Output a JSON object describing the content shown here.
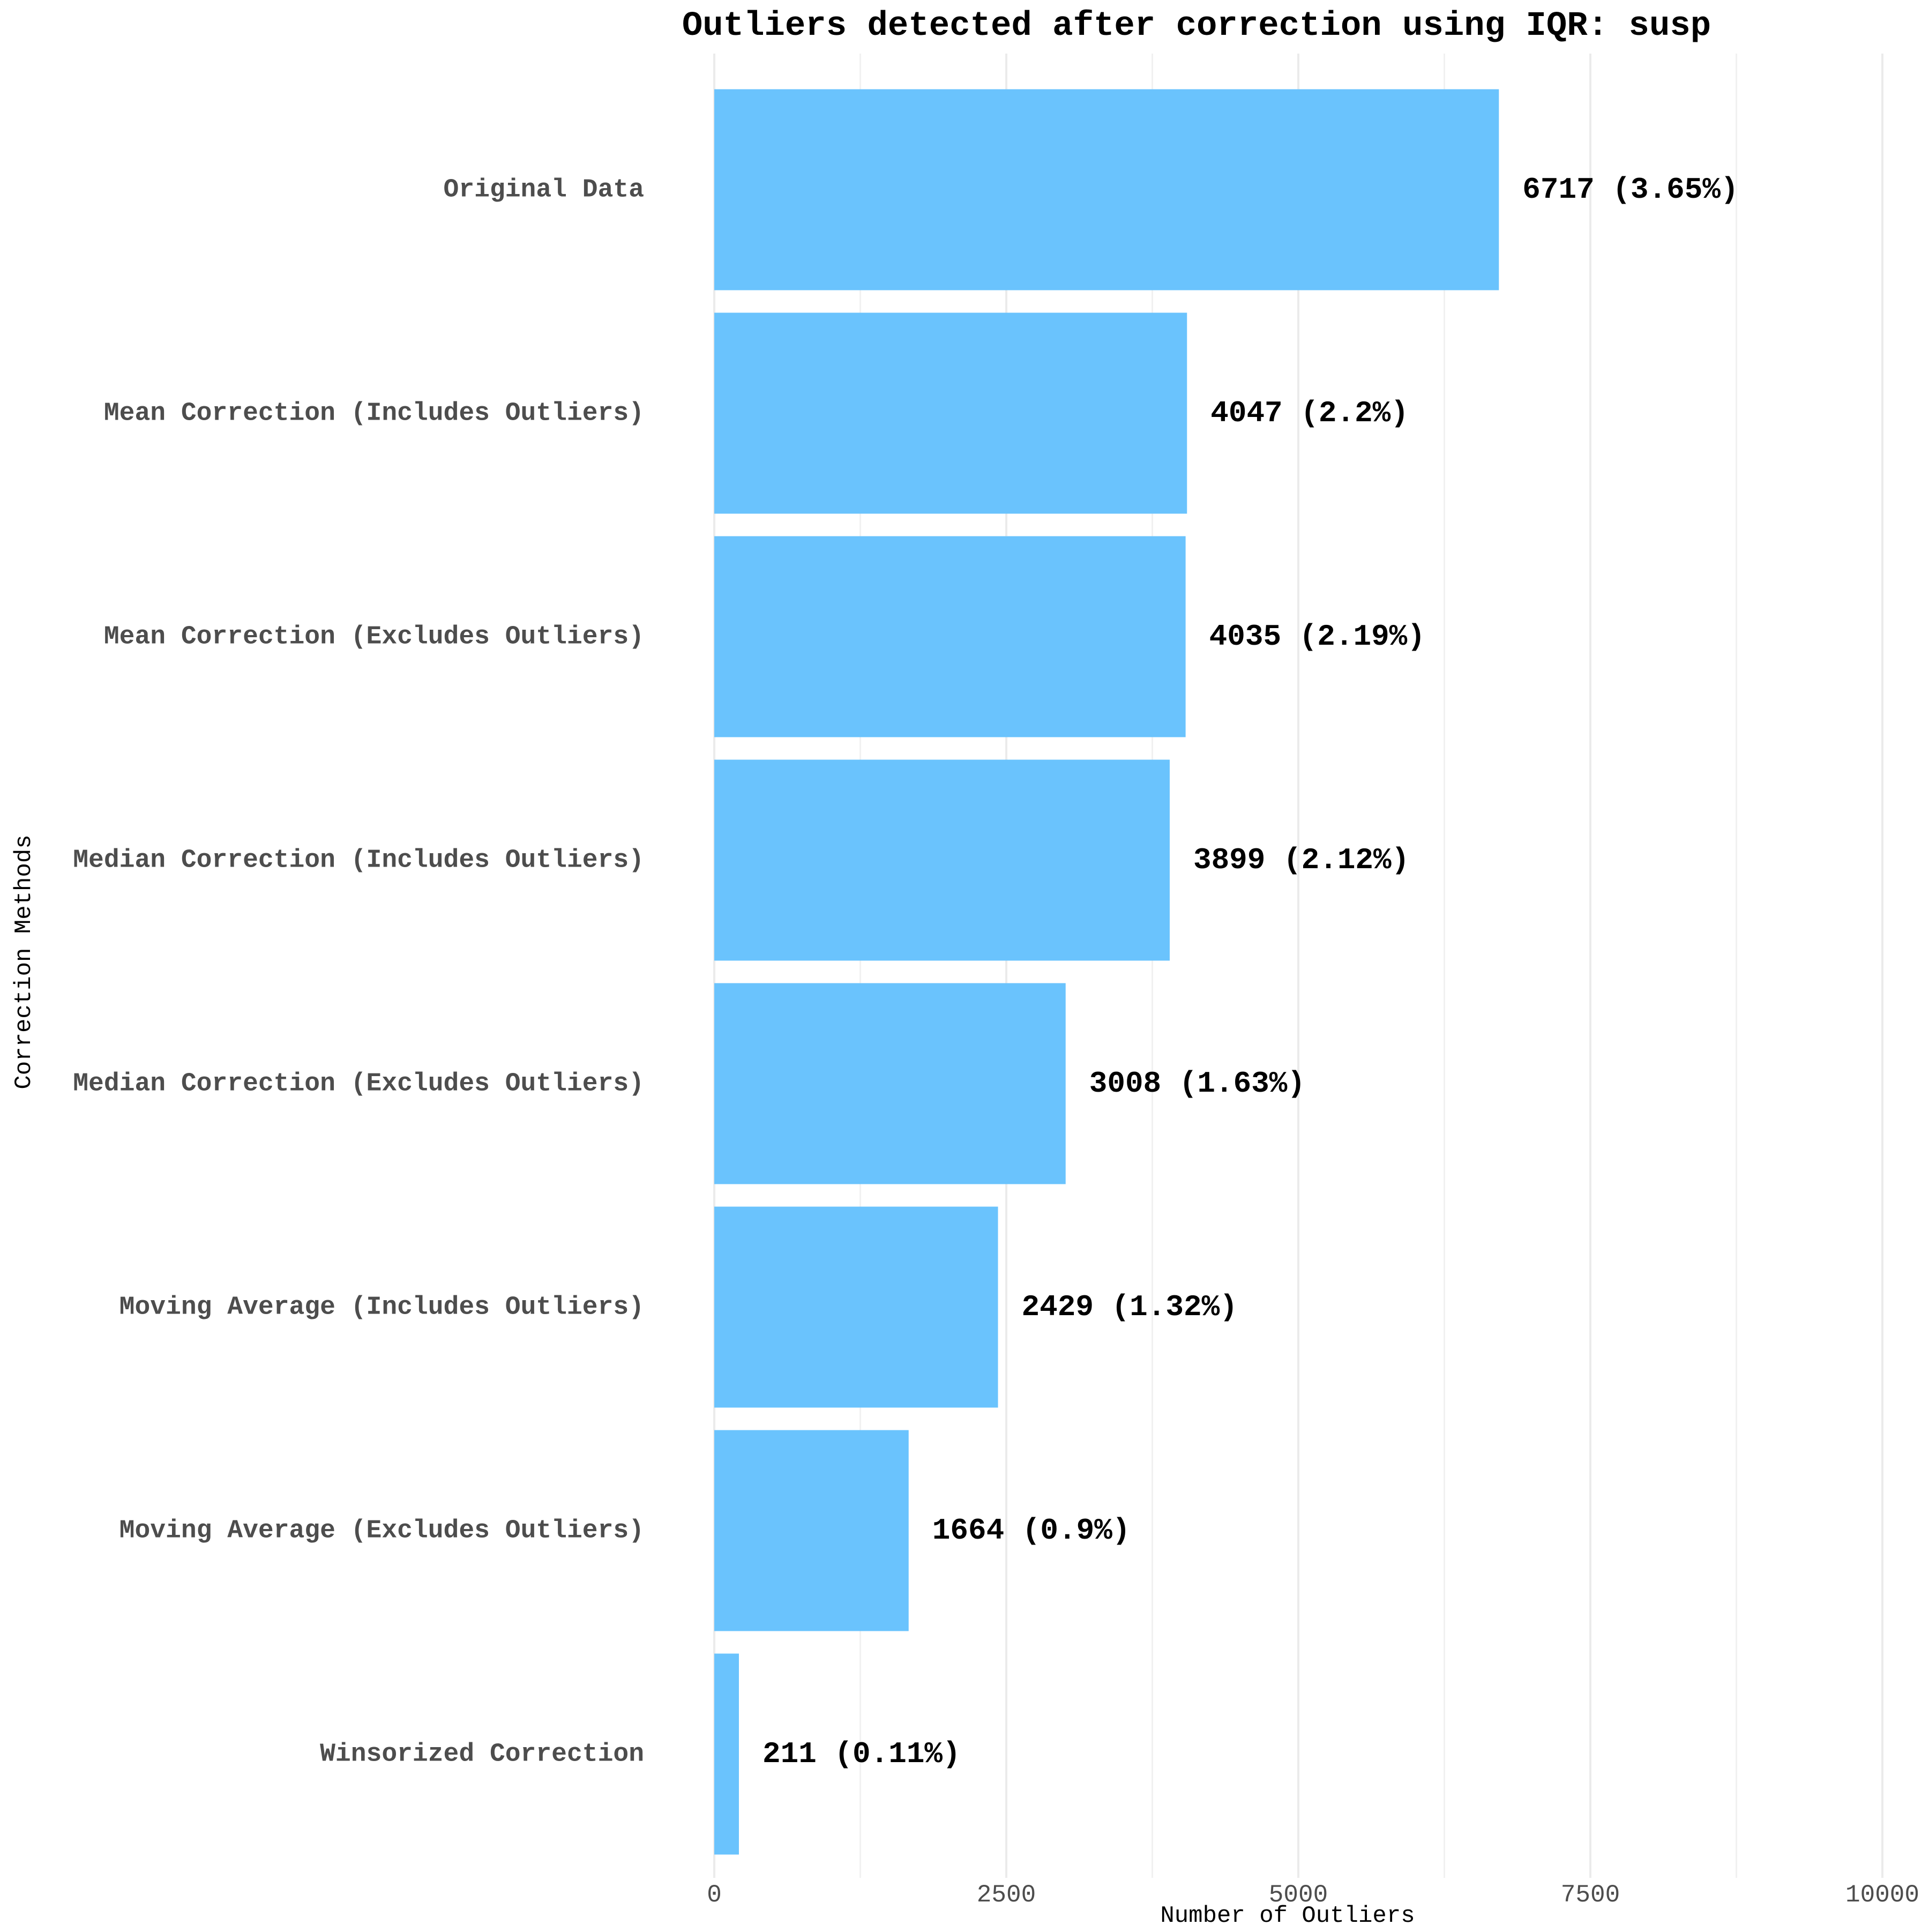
{
  "chart_data": {
    "type": "bar",
    "orientation": "horizontal",
    "title": "Outliers detected after correction using IQR: susp",
    "xlabel": "Number of Outliers",
    "ylabel": "Correction Methods",
    "xlim": [
      0,
      10000
    ],
    "xticks": [
      0,
      2500,
      5000,
      7500,
      10000
    ],
    "grid": true,
    "bar_color": "#6ac3fd",
    "categories": [
      "Original Data",
      "Mean Correction (Includes Outliers)",
      "Mean Correction (Excludes Outliers)",
      "Median Correction (Includes Outliers)",
      "Median Correction (Excludes Outliers)",
      "Moving Average (Includes Outliers)",
      "Moving Average (Excludes Outliers)",
      "Winsorized Correction"
    ],
    "values": [
      6717,
      4047,
      4035,
      3899,
      3008,
      2429,
      1664,
      211
    ],
    "data_labels": [
      "6717 (3.65%)",
      "4047 (2.2%)",
      "4035 (2.19%)",
      "3899 (2.12%)",
      "3008 (1.63%)",
      "2429 (1.32%)",
      "1664 (0.9%)",
      "211 (0.11%)"
    ]
  }
}
